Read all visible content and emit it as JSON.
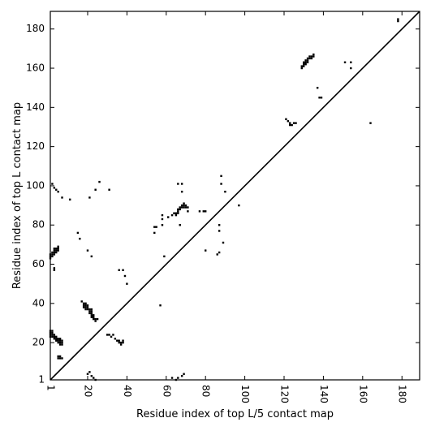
{
  "chart_data": {
    "type": "scatter",
    "marker": "square",
    "colors": {
      "marks": "#000000",
      "diagonal": "#000000",
      "frame": "#000000",
      "background": "#ffffff"
    },
    "xlabel": "Residue index of top L/5 contact map",
    "ylabel": "Residue index of top L contact map",
    "xlim": [
      1,
      189
    ],
    "ylim": [
      1,
      189
    ],
    "x_ticks": [
      1,
      20,
      40,
      60,
      80,
      100,
      120,
      140,
      160,
      180
    ],
    "y_ticks": [
      1,
      20,
      40,
      60,
      80,
      100,
      120,
      140,
      160,
      180
    ],
    "x_tick_labels": [
      "1",
      "20",
      "40",
      "60",
      "80",
      "100",
      "120",
      "140",
      "160",
      "180"
    ],
    "y_tick_labels": [
      "1",
      "20",
      "40",
      "60",
      "80",
      "100",
      "120",
      "140",
      "160",
      "180"
    ],
    "x_tick_rotation": -90,
    "diagonal": [
      [
        1,
        1
      ],
      [
        189,
        189
      ]
    ],
    "grid": false,
    "series": [
      {
        "values": [
          [
            1,
            23
          ],
          [
            1,
            24
          ],
          [
            1,
            25
          ],
          [
            1,
            26
          ],
          [
            2,
            23
          ],
          [
            2,
            24
          ],
          [
            2,
            25
          ],
          [
            2,
            26
          ],
          [
            3,
            22
          ],
          [
            3,
            23
          ],
          [
            3,
            24
          ],
          [
            4,
            21
          ],
          [
            4,
            22
          ],
          [
            4,
            23
          ],
          [
            5,
            20
          ],
          [
            5,
            21
          ],
          [
            5,
            22
          ],
          [
            6,
            19
          ],
          [
            6,
            20
          ],
          [
            6,
            21
          ],
          [
            6,
            22
          ],
          [
            7,
            19
          ],
          [
            7,
            20
          ],
          [
            7,
            21
          ],
          [
            5,
            12
          ],
          [
            6,
            12
          ],
          [
            7,
            12
          ],
          [
            5,
            13
          ],
          [
            6,
            13
          ],
          [
            1,
            63
          ],
          [
            1,
            64
          ],
          [
            1,
            65
          ],
          [
            2,
            64
          ],
          [
            2,
            65
          ],
          [
            2,
            66
          ],
          [
            3,
            65
          ],
          [
            3,
            66
          ],
          [
            3,
            67
          ],
          [
            3,
            68
          ],
          [
            4,
            66
          ],
          [
            4,
            67
          ],
          [
            4,
            68
          ],
          [
            5,
            67
          ],
          [
            5,
            68
          ],
          [
            5,
            69
          ],
          [
            3,
            57
          ],
          [
            3,
            58
          ],
          [
            4,
            98
          ],
          [
            5,
            97
          ],
          [
            7,
            94
          ],
          [
            11,
            93
          ],
          [
            2,
            101
          ],
          [
            3,
            99
          ],
          [
            15,
            76
          ],
          [
            16,
            73
          ],
          [
            17,
            41
          ],
          [
            18,
            38
          ],
          [
            18,
            39
          ],
          [
            18,
            40
          ],
          [
            19,
            37
          ],
          [
            19,
            38
          ],
          [
            19,
            39
          ],
          [
            19,
            40
          ],
          [
            20,
            37
          ],
          [
            20,
            38
          ],
          [
            20,
            39
          ],
          [
            21,
            35
          ],
          [
            21,
            36
          ],
          [
            21,
            37
          ],
          [
            22,
            33
          ],
          [
            22,
            34
          ],
          [
            22,
            35
          ],
          [
            22,
            36
          ],
          [
            22,
            37
          ],
          [
            23,
            32
          ],
          [
            23,
            33
          ],
          [
            23,
            34
          ],
          [
            24,
            31
          ],
          [
            24,
            32
          ],
          [
            25,
            32
          ],
          [
            21,
            94
          ],
          [
            22,
            64
          ],
          [
            24,
            98
          ],
          [
            26,
            102
          ],
          [
            20,
            67
          ],
          [
            20,
            4
          ],
          [
            21,
            5
          ],
          [
            22,
            3
          ],
          [
            23,
            2
          ],
          [
            24,
            1
          ],
          [
            30,
            24
          ],
          [
            31,
            24
          ],
          [
            32,
            23
          ],
          [
            33,
            24
          ],
          [
            35,
            21
          ],
          [
            36,
            20
          ],
          [
            36,
            21
          ],
          [
            37,
            19
          ],
          [
            37,
            20
          ],
          [
            38,
            20
          ],
          [
            38,
            21
          ],
          [
            34,
            22
          ],
          [
            31,
            98
          ],
          [
            36,
            57
          ],
          [
            38,
            57
          ],
          [
            39,
            54
          ],
          [
            40,
            50
          ],
          [
            54,
            79
          ],
          [
            55,
            79
          ],
          [
            54,
            76
          ],
          [
            57,
            39
          ],
          [
            58,
            85
          ],
          [
            58,
            83
          ],
          [
            58,
            80
          ],
          [
            59,
            64
          ],
          [
            61,
            84
          ],
          [
            63,
            85
          ],
          [
            64,
            86
          ],
          [
            65,
            85
          ],
          [
            65,
            86
          ],
          [
            66,
            86
          ],
          [
            66,
            87
          ],
          [
            66,
            88
          ],
          [
            67,
            88
          ],
          [
            67,
            89
          ],
          [
            68,
            89
          ],
          [
            68,
            90
          ],
          [
            69,
            89
          ],
          [
            69,
            90
          ],
          [
            69,
            91
          ],
          [
            70,
            89
          ],
          [
            70,
            90
          ],
          [
            67,
            80
          ],
          [
            68,
            97
          ],
          [
            66,
            101
          ],
          [
            68,
            101
          ],
          [
            71,
            87
          ],
          [
            71,
            89
          ],
          [
            77,
            87
          ],
          [
            79,
            87
          ],
          [
            80,
            87
          ],
          [
            80,
            67
          ],
          [
            63,
            2
          ],
          [
            65,
            1
          ],
          [
            66,
            2
          ],
          [
            68,
            3
          ],
          [
            69,
            4
          ],
          [
            86,
            65
          ],
          [
            87,
            66
          ],
          [
            87,
            77
          ],
          [
            87,
            80
          ],
          [
            88,
            101
          ],
          [
            88,
            105
          ],
          [
            89,
            71
          ],
          [
            90,
            97
          ],
          [
            97,
            90
          ],
          [
            121,
            134
          ],
          [
            122,
            133
          ],
          [
            123,
            132
          ],
          [
            123,
            131
          ],
          [
            124,
            131
          ],
          [
            125,
            132
          ],
          [
            126,
            132
          ],
          [
            129,
            160
          ],
          [
            129,
            161
          ],
          [
            130,
            161
          ],
          [
            130,
            162
          ],
          [
            130,
            163
          ],
          [
            131,
            162
          ],
          [
            131,
            163
          ],
          [
            131,
            164
          ],
          [
            132,
            163
          ],
          [
            132,
            164
          ],
          [
            132,
            165
          ],
          [
            133,
            165
          ],
          [
            133,
            166
          ],
          [
            134,
            165
          ],
          [
            134,
            166
          ],
          [
            135,
            166
          ],
          [
            135,
            167
          ],
          [
            137,
            150
          ],
          [
            138,
            145
          ],
          [
            139,
            145
          ],
          [
            151,
            163
          ],
          [
            154,
            160
          ],
          [
            154,
            163
          ],
          [
            164,
            132
          ],
          [
            178,
            184
          ],
          [
            178,
            185
          ]
        ]
      }
    ]
  }
}
